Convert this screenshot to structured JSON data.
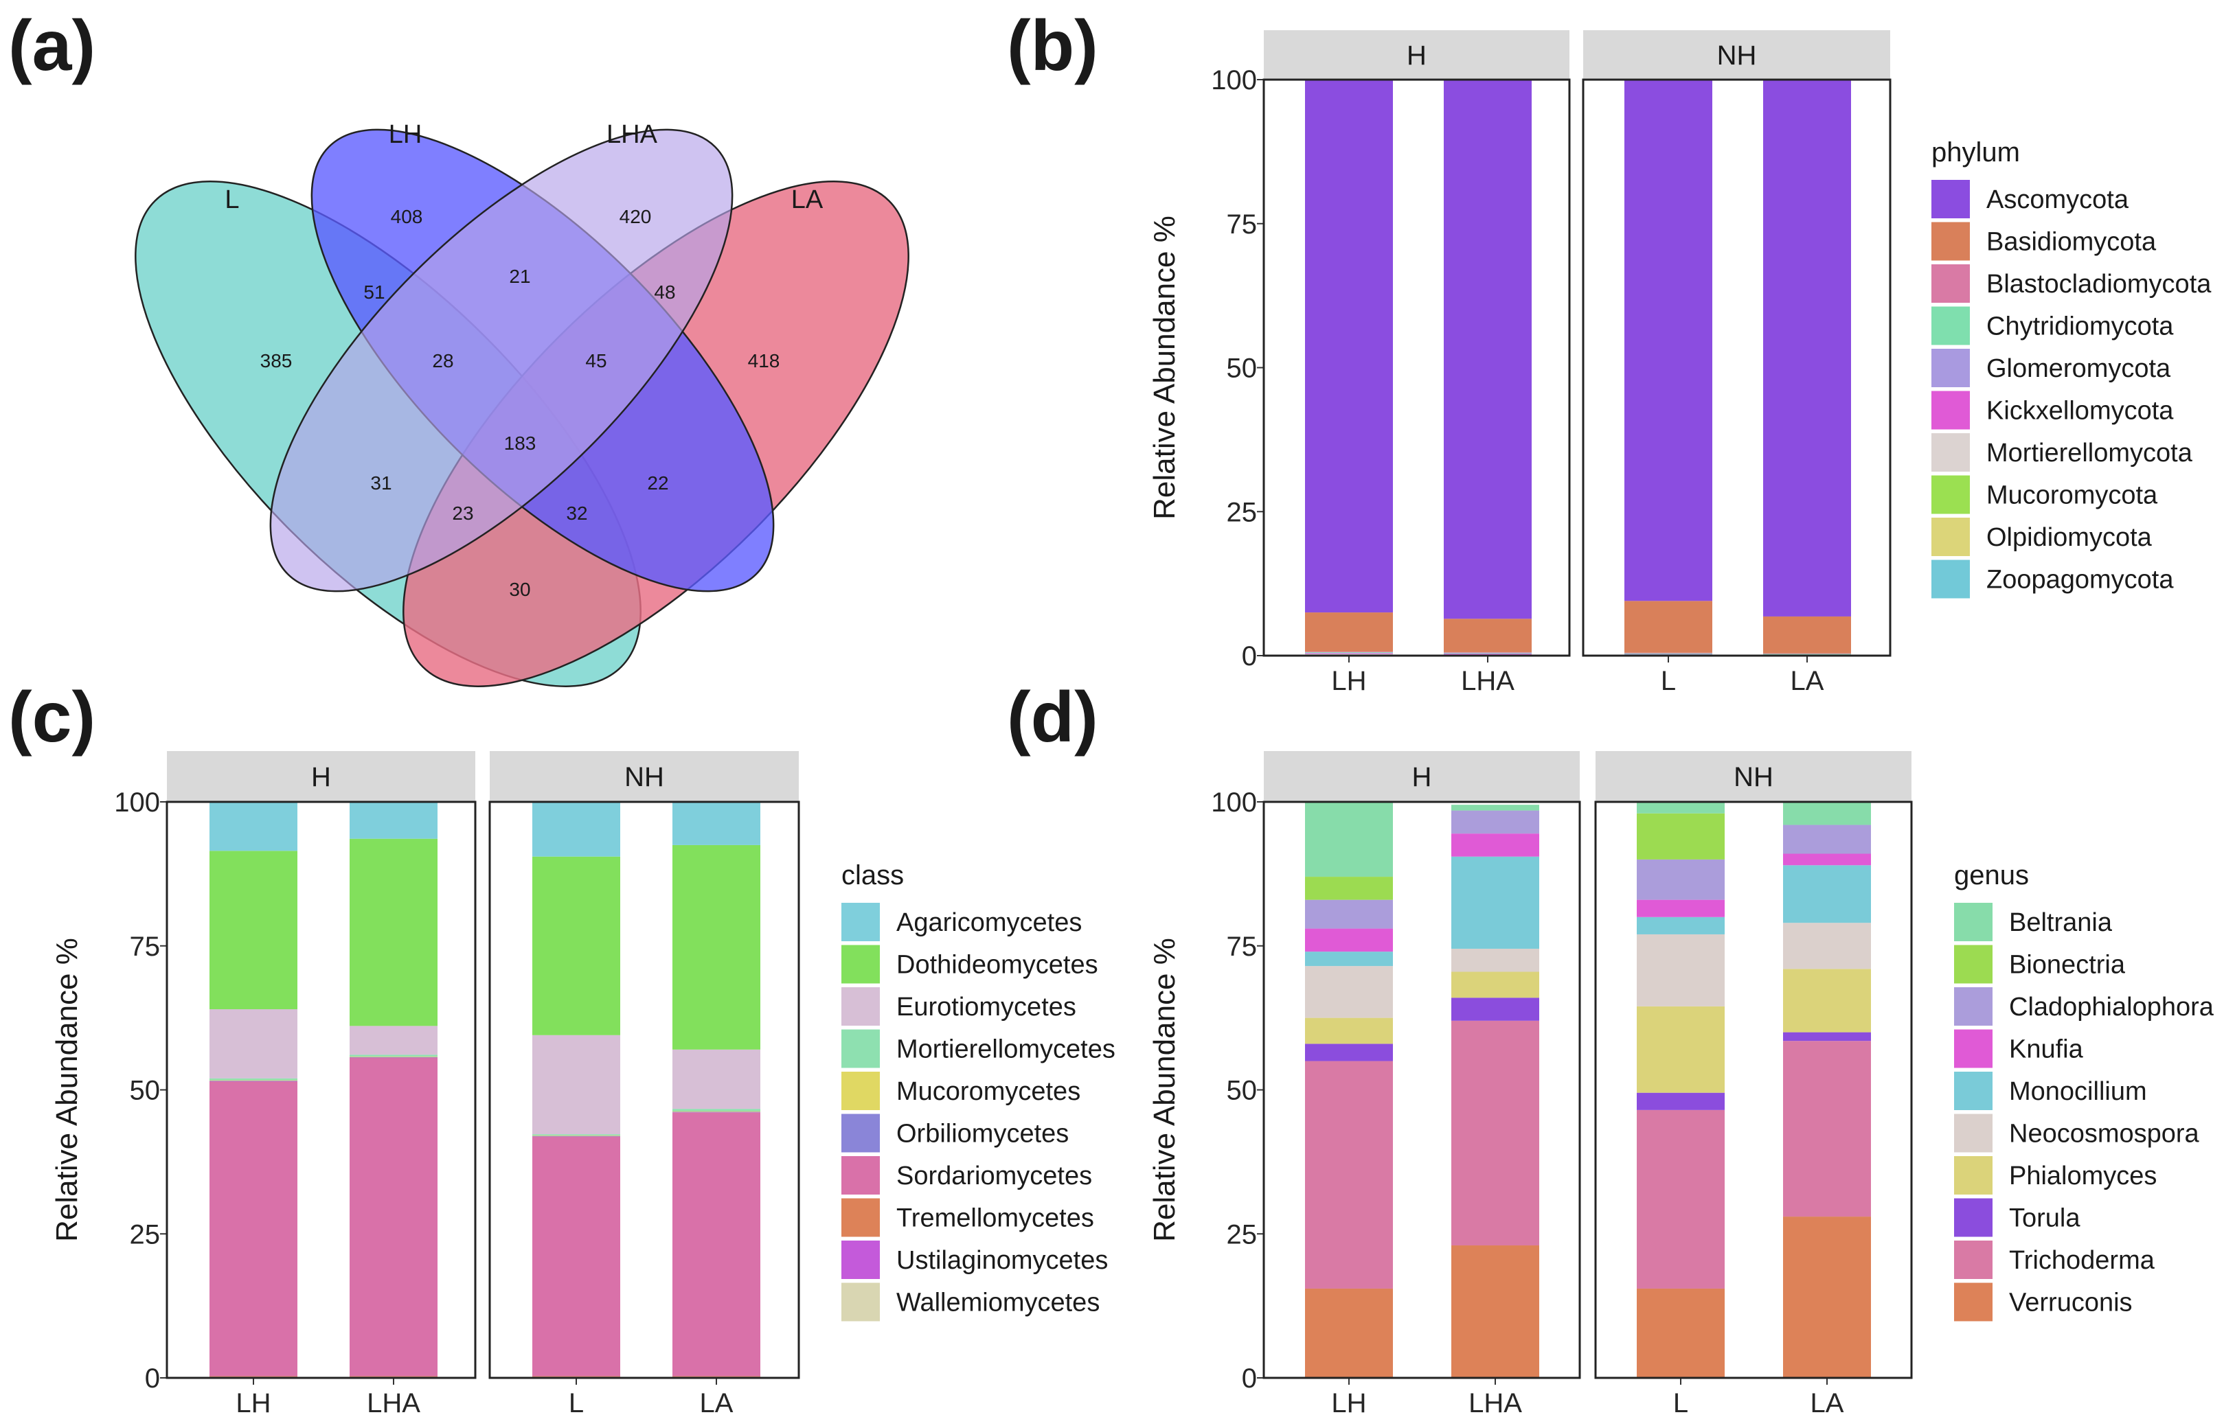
{
  "panels": {
    "a": "(a)",
    "b": "(b)",
    "c": "(c)",
    "d": "(d)"
  },
  "common": {
    "ylabel": "Relative Abundance  %",
    "y_ticks": [
      "0",
      "25",
      "50",
      "75",
      "100"
    ],
    "facets": [
      "H",
      "NH"
    ],
    "samples_by_facet": [
      [
        "LH",
        "LHA"
      ],
      [
        "L",
        "LA"
      ]
    ]
  },
  "venn": {
    "set_labels": [
      "L",
      "LH",
      "LHA",
      "LA"
    ],
    "set_colors": [
      "#6ed2cb",
      "#5b5bff",
      "#b5a3ea",
      "#e86f85"
    ],
    "regions": [
      {
        "sets": "L",
        "count": 385
      },
      {
        "sets": "LH",
        "count": 408
      },
      {
        "sets": "LHA",
        "count": 420
      },
      {
        "sets": "LA",
        "count": 418
      },
      {
        "sets": "L+LH",
        "count": 51
      },
      {
        "sets": "LH+LHA",
        "count": 21
      },
      {
        "sets": "LHA+LA",
        "count": 48
      },
      {
        "sets": "L+LH+LHA",
        "count": 28
      },
      {
        "sets": "LH+LHA+LA",
        "count": 45
      },
      {
        "sets": "L+LH+LHA+LA",
        "count": 183
      },
      {
        "sets": "L+LHA",
        "count": 31
      },
      {
        "sets": "LH+LA",
        "count": 22
      },
      {
        "sets": "L+LHA+LA",
        "count": 23
      },
      {
        "sets": "L+LH+LA",
        "count": 32
      },
      {
        "sets": "L+LA",
        "count": 30
      }
    ]
  },
  "chart_data": [
    {
      "panel": "b",
      "type": "bar",
      "stacked": true,
      "title": "",
      "xlabel": "",
      "ylabel": "Relative Abundance  %",
      "ylim": [
        0,
        100
      ],
      "facets": [
        "H",
        "NH"
      ],
      "categories": [
        "LH",
        "LHA",
        "L",
        "LA"
      ],
      "legend_title": "phylum",
      "series": [
        {
          "name": "Ascomycota",
          "color": "#8b4de0",
          "values": [
            92.5,
            93.7,
            90.5,
            93.2
          ]
        },
        {
          "name": "Basidiomycota",
          "color": "#d9805a",
          "values": [
            6.8,
            5.8,
            9.0,
            6.4
          ]
        },
        {
          "name": "Blastocladiomycota",
          "color": "#d97aa5",
          "values": [
            0.1,
            0.1,
            0.1,
            0.1
          ]
        },
        {
          "name": "Chytridiomycota",
          "color": "#7fdfae",
          "values": [
            0.1,
            0.1,
            0.1,
            0.1
          ]
        },
        {
          "name": "Glomeromycota",
          "color": "#a99ae0",
          "values": [
            0.1,
            0.1,
            0.1,
            0.1
          ]
        },
        {
          "name": "Kickxellomycota",
          "color": "#e05ad6",
          "values": [
            0.1,
            0.1,
            0.0,
            0.0
          ]
        },
        {
          "name": "Mortierellomycota",
          "color": "#dcd3d1",
          "values": [
            0.1,
            0.1,
            0.1,
            0.1
          ]
        },
        {
          "name": "Mucoromycota",
          "color": "#9be051",
          "values": [
            0.1,
            0.1,
            0.1,
            0.0
          ]
        },
        {
          "name": "Olpidiomycota",
          "color": "#dcd579",
          "values": [
            0.0,
            0.0,
            0.0,
            0.0
          ]
        },
        {
          "name": "Zoopagomycota",
          "color": "#72c9d8",
          "values": [
            0.1,
            0.0,
            0.0,
            0.0
          ]
        }
      ]
    },
    {
      "panel": "c",
      "type": "bar",
      "stacked": true,
      "title": "",
      "xlabel": "",
      "ylabel": "Relative Abundance  %",
      "ylim": [
        0,
        100
      ],
      "facets": [
        "H",
        "NH"
      ],
      "categories": [
        "LH",
        "LHA",
        "L",
        "LA"
      ],
      "legend_title": "class",
      "series": [
        {
          "name": "Agaricomycetes",
          "color": "#7fcfdc",
          "values": [
            8.5,
            6.5,
            9.5,
            7.5
          ]
        },
        {
          "name": "Dothideomycetes",
          "color": "#82e05c",
          "values": [
            27.5,
            32.5,
            31.0,
            35.5
          ]
        },
        {
          "name": "Eurotiomycetes",
          "color": "#d7bfd6",
          "values": [
            12.0,
            5.0,
            17.2,
            10.3
          ]
        },
        {
          "name": "Mortierellomycetes",
          "color": "#8ee0b0",
          "values": [
            0.3,
            0.3,
            0.2,
            0.4
          ]
        },
        {
          "name": "Mucoromycetes",
          "color": "#e0d863",
          "values": [
            0.1,
            0.1,
            0.1,
            0.1
          ]
        },
        {
          "name": "Orbiliomycetes",
          "color": "#8a85d8",
          "values": [
            0.1,
            0.1,
            0.1,
            0.1
          ]
        },
        {
          "name": "Sordariomycetes",
          "color": "#d971a9",
          "values": [
            51.2,
            55.3,
            41.6,
            45.8
          ]
        },
        {
          "name": "Tremellomycetes",
          "color": "#dd8258",
          "values": [
            0.1,
            0.1,
            0.1,
            0.1
          ]
        },
        {
          "name": "Ustilaginomycetes",
          "color": "#c45ada",
          "values": [
            0.1,
            0.1,
            0.1,
            0.1
          ]
        },
        {
          "name": "Wallemiomycetes",
          "color": "#d9d6b2",
          "values": [
            0.1,
            0.1,
            0.1,
            0.1
          ]
        }
      ]
    },
    {
      "panel": "d",
      "type": "bar",
      "stacked": true,
      "title": "",
      "xlabel": "",
      "ylabel": "Relative Abundance  %",
      "ylim": [
        0,
        100
      ],
      "facets": [
        "H",
        "NH"
      ],
      "categories": [
        "LH",
        "LHA",
        "L",
        "LA"
      ],
      "legend_title": "genus",
      "series": [
        {
          "name": "Beltrania",
          "color": "#87dcaa",
          "values": [
            13.0,
            1.0,
            2.0,
            4.0
          ]
        },
        {
          "name": "Bionectria",
          "color": "#9cdb51",
          "values": [
            4.0,
            0.0,
            8.0,
            0.0
          ]
        },
        {
          "name": "Cladophialophora",
          "color": "#ab9ddb",
          "values": [
            5.0,
            4.0,
            7.0,
            5.0
          ]
        },
        {
          "name": "Knufia",
          "color": "#e05ad6",
          "values": [
            4.0,
            4.0,
            3.0,
            2.0
          ]
        },
        {
          "name": "Monocillium",
          "color": "#7acbd8",
          "values": [
            2.5,
            16.0,
            3.0,
            10.0
          ]
        },
        {
          "name": "Neocosmospora",
          "color": "#dbd0cc",
          "values": [
            9.0,
            4.0,
            12.5,
            8.0
          ]
        },
        {
          "name": "Phialomyces",
          "color": "#dbd37a",
          "values": [
            4.5,
            4.5,
            15.0,
            11.0
          ]
        },
        {
          "name": "Torula",
          "color": "#8b4ddd",
          "values": [
            3.0,
            4.0,
            3.0,
            1.5
          ]
        },
        {
          "name": "Trichoderma",
          "color": "#d97aa5",
          "values": [
            39.5,
            39.0,
            31.0,
            30.5
          ]
        },
        {
          "name": "Verruconis",
          "color": "#dd8258",
          "values": [
            15.5,
            23.0,
            15.5,
            28.0
          ]
        }
      ]
    }
  ]
}
